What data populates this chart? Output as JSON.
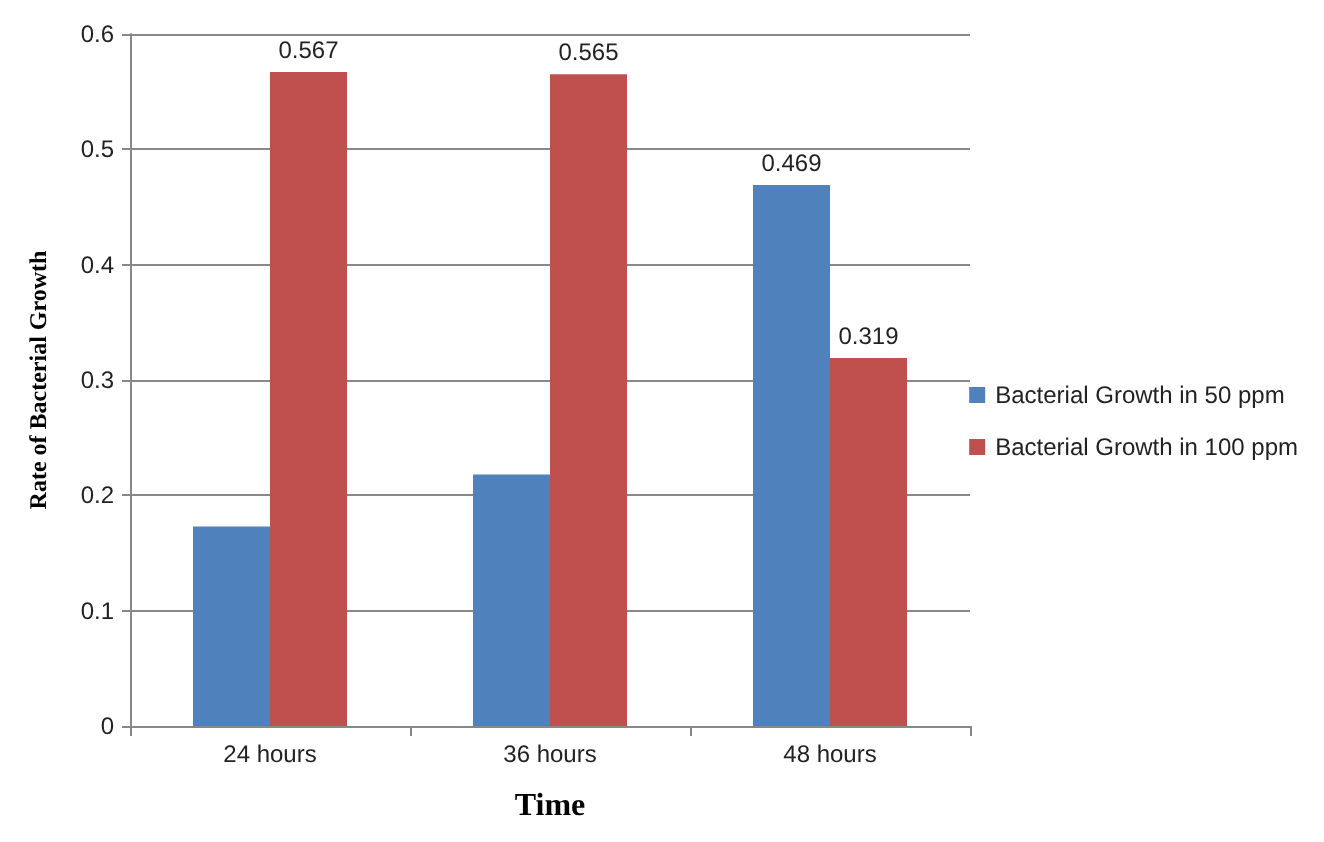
{
  "chart_data": {
    "type": "bar",
    "xlabel": "Time",
    "ylabel": "Rate of Bacterial Growth",
    "categories": [
      "24 hours",
      "36 hours",
      "48 hours"
    ],
    "series": [
      {
        "name": "Bacterial Growth in 50 ppm",
        "color": "#4f81bd",
        "values": [
          0.173,
          0.218,
          0.469
        ],
        "value_labels": [
          null,
          null,
          "0.469"
        ]
      },
      {
        "name": "Bacterial Growth in 100 ppm",
        "color": "#c0504d",
        "values": [
          0.567,
          0.565,
          0.319
        ],
        "value_labels": [
          "0.567",
          "0.565",
          "0.319"
        ]
      }
    ],
    "ylim": [
      0,
      0.6
    ],
    "yticks": [
      0,
      0.1,
      0.2,
      0.3,
      0.4,
      0.5,
      0.6
    ],
    "grid": "y",
    "legend": "right"
  }
}
